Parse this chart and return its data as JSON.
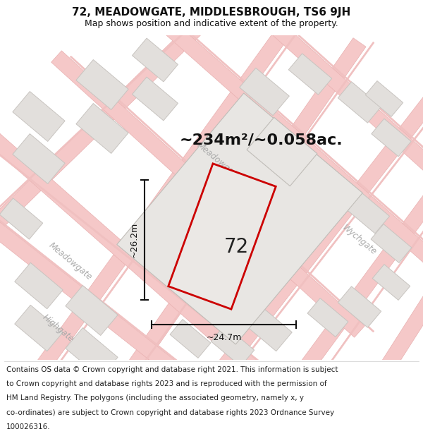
{
  "title_line1": "72, MEADOWGATE, MIDDLESBROUGH, TS6 9JH",
  "title_line2": "Map shows position and indicative extent of the property.",
  "area_label": "~234m²/~0.058ac.",
  "number_label": "72",
  "dim_width": "~24.7m",
  "dim_height": "~26.2m",
  "footer_lines": [
    "Contains OS data © Crown copyright and database right 2021. This information is subject",
    "to Crown copyright and database rights 2023 and is reproduced with the permission of",
    "HM Land Registry. The polygons (including the associated geometry, namely x, y",
    "co-ordinates) are subject to Crown copyright and database rights 2023 Ordnance Survey",
    "100026316."
  ],
  "map_bg": "#f2f0ee",
  "road_fill": "#f5c8c8",
  "road_edge": "#e8b0b0",
  "building_fill": "#e2dfdc",
  "building_edge": "#c8c4c0",
  "plot_stroke": "#cc0000",
  "plot_fill": "#ebe8e5",
  "dim_color": "#111111",
  "street_color": "#aaaaaa",
  "title_fontsize": 11,
  "subtitle_fontsize": 9,
  "area_fontsize": 16,
  "number_fontsize": 20,
  "footer_fontsize": 7.5,
  "dim_fontsize": 9
}
